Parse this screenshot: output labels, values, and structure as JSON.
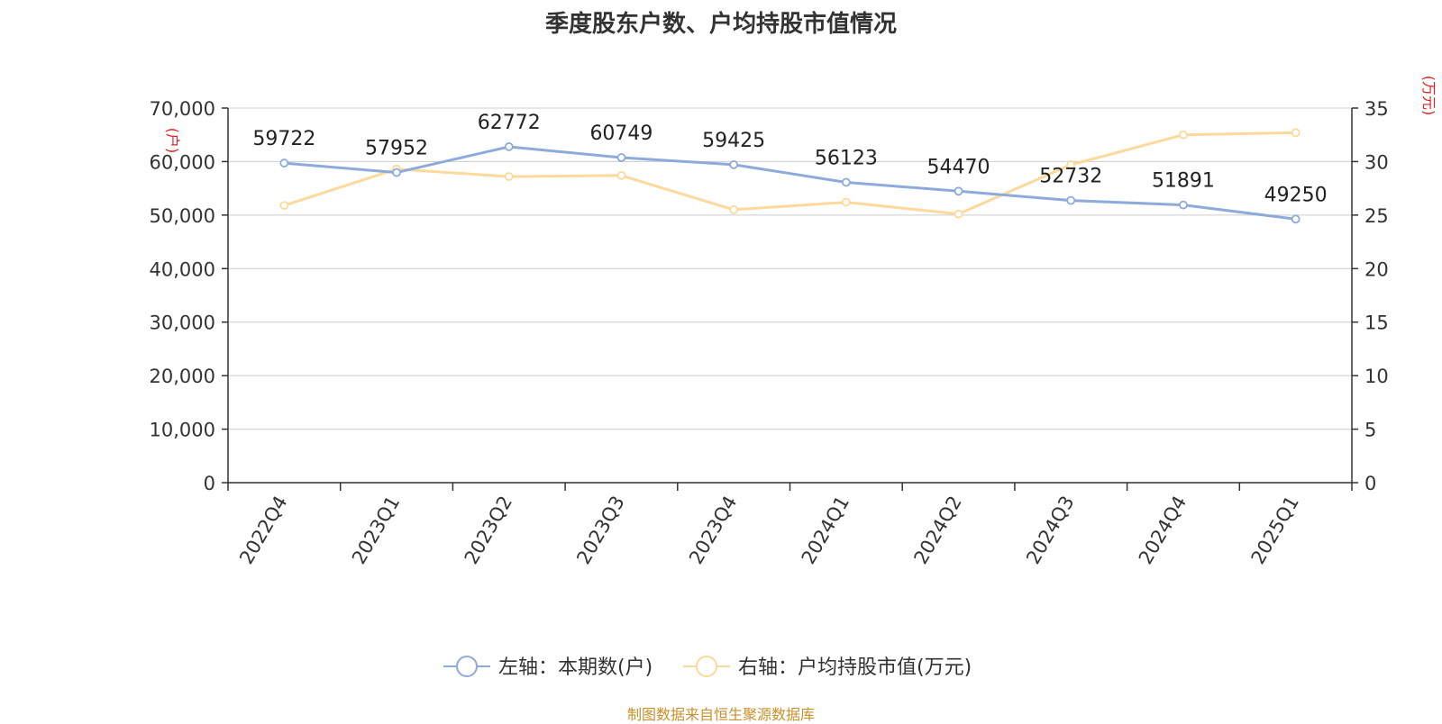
{
  "chart_data": {
    "type": "line",
    "title": "季度股东户数、户均持股市值情况",
    "categories": [
      "2022Q4",
      "2023Q1",
      "2023Q2",
      "2023Q3",
      "2023Q4",
      "2024Q1",
      "2024Q2",
      "2024Q3",
      "2024Q4",
      "2025Q1"
    ],
    "left_axis": {
      "unit": "(户)",
      "range": [
        0,
        70000
      ],
      "ticks": [
        "0",
        "10,000",
        "20,000",
        "30,000",
        "40,000",
        "50,000",
        "60,000",
        "70,000"
      ]
    },
    "right_axis": {
      "unit": "(万元)",
      "range": [
        0,
        35
      ],
      "ticks": [
        "0",
        "5",
        "10",
        "15",
        "20",
        "25",
        "30",
        "35"
      ]
    },
    "grid": true,
    "legend_position": "bottom",
    "series": [
      {
        "name": "左轴：本期数(户)",
        "axis": "left",
        "color": "#8eaadb",
        "values": [
          59722,
          57952,
          62772,
          60749,
          59425,
          56123,
          54470,
          52732,
          51891,
          49250
        ],
        "labels": [
          "59722",
          "57952",
          "62772",
          "60749",
          "59425",
          "56123",
          "54470",
          "52732",
          "51891",
          "49250"
        ]
      },
      {
        "name": "右轴：户均持股市值(万元)",
        "axis": "right",
        "color": "#fdd99b",
        "values": [
          25.9,
          29.3,
          28.6,
          28.7,
          25.5,
          26.2,
          25.1,
          29.7,
          32.5,
          32.7
        ]
      }
    ]
  },
  "source": "制图数据来自恒生聚源数据库"
}
